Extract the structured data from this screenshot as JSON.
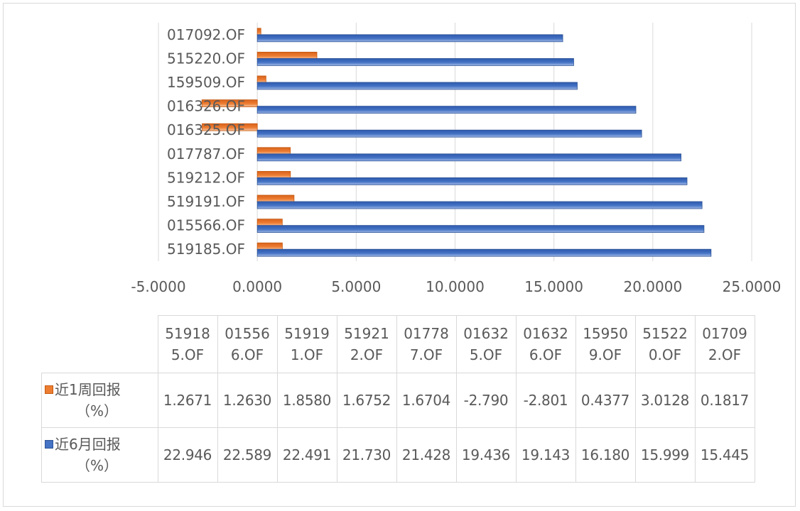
{
  "chart_data": {
    "type": "bar",
    "orientation": "horizontal",
    "categories": [
      "519185.OF",
      "015566.OF",
      "519191.OF",
      "519212.OF",
      "017787.OF",
      "016325.OF",
      "016326.OF",
      "159509.OF",
      "515220.OF",
      "017092.OF"
    ],
    "series": [
      {
        "name": "近1周回报（%）",
        "color": "#ed7d31",
        "values": [
          1.2671,
          1.263,
          1.858,
          1.6752,
          1.6704,
          -2.79,
          -2.801,
          0.4377,
          3.0128,
          0.1817
        ]
      },
      {
        "name": "近6月回报（%）",
        "color": "#4472c4",
        "values": [
          22.946,
          22.589,
          22.491,
          21.73,
          21.428,
          19.436,
          19.143,
          16.18,
          15.999,
          15.445
        ]
      }
    ],
    "xlim": [
      -5,
      25
    ],
    "xticks": [
      "-5.0000",
      "0.0000",
      "5.0000",
      "10.0000",
      "15.0000",
      "20.0000",
      "25.0000"
    ],
    "grid": true,
    "legend": "data-table"
  },
  "table": {
    "headers": [
      [
        "51918",
        "5.OF"
      ],
      [
        "01556",
        "6.OF"
      ],
      [
        "51919",
        "1.OF"
      ],
      [
        "51921",
        "2.OF"
      ],
      [
        "01778",
        "7.OF"
      ],
      [
        "01632",
        "5.OF"
      ],
      [
        "01632",
        "6.OF"
      ],
      [
        "15950",
        "9.OF"
      ],
      [
        "51522",
        "0.OF"
      ],
      [
        "01709",
        "2.OF"
      ]
    ],
    "rows": [
      {
        "label": "近1周回报",
        "unit": "（%）",
        "cells": [
          "1.2671",
          "1.2630",
          "1.8580",
          "1.6752",
          "1.6704",
          "-2.790",
          "-2.801",
          "0.4377",
          "3.0128",
          "0.1817"
        ]
      },
      {
        "label": "近6月回报",
        "unit": "（%）",
        "cells": [
          "22.946",
          "22.589",
          "22.491",
          "21.730",
          "21.428",
          "19.436",
          "19.143",
          "16.180",
          "15.999",
          "15.445"
        ]
      }
    ]
  }
}
